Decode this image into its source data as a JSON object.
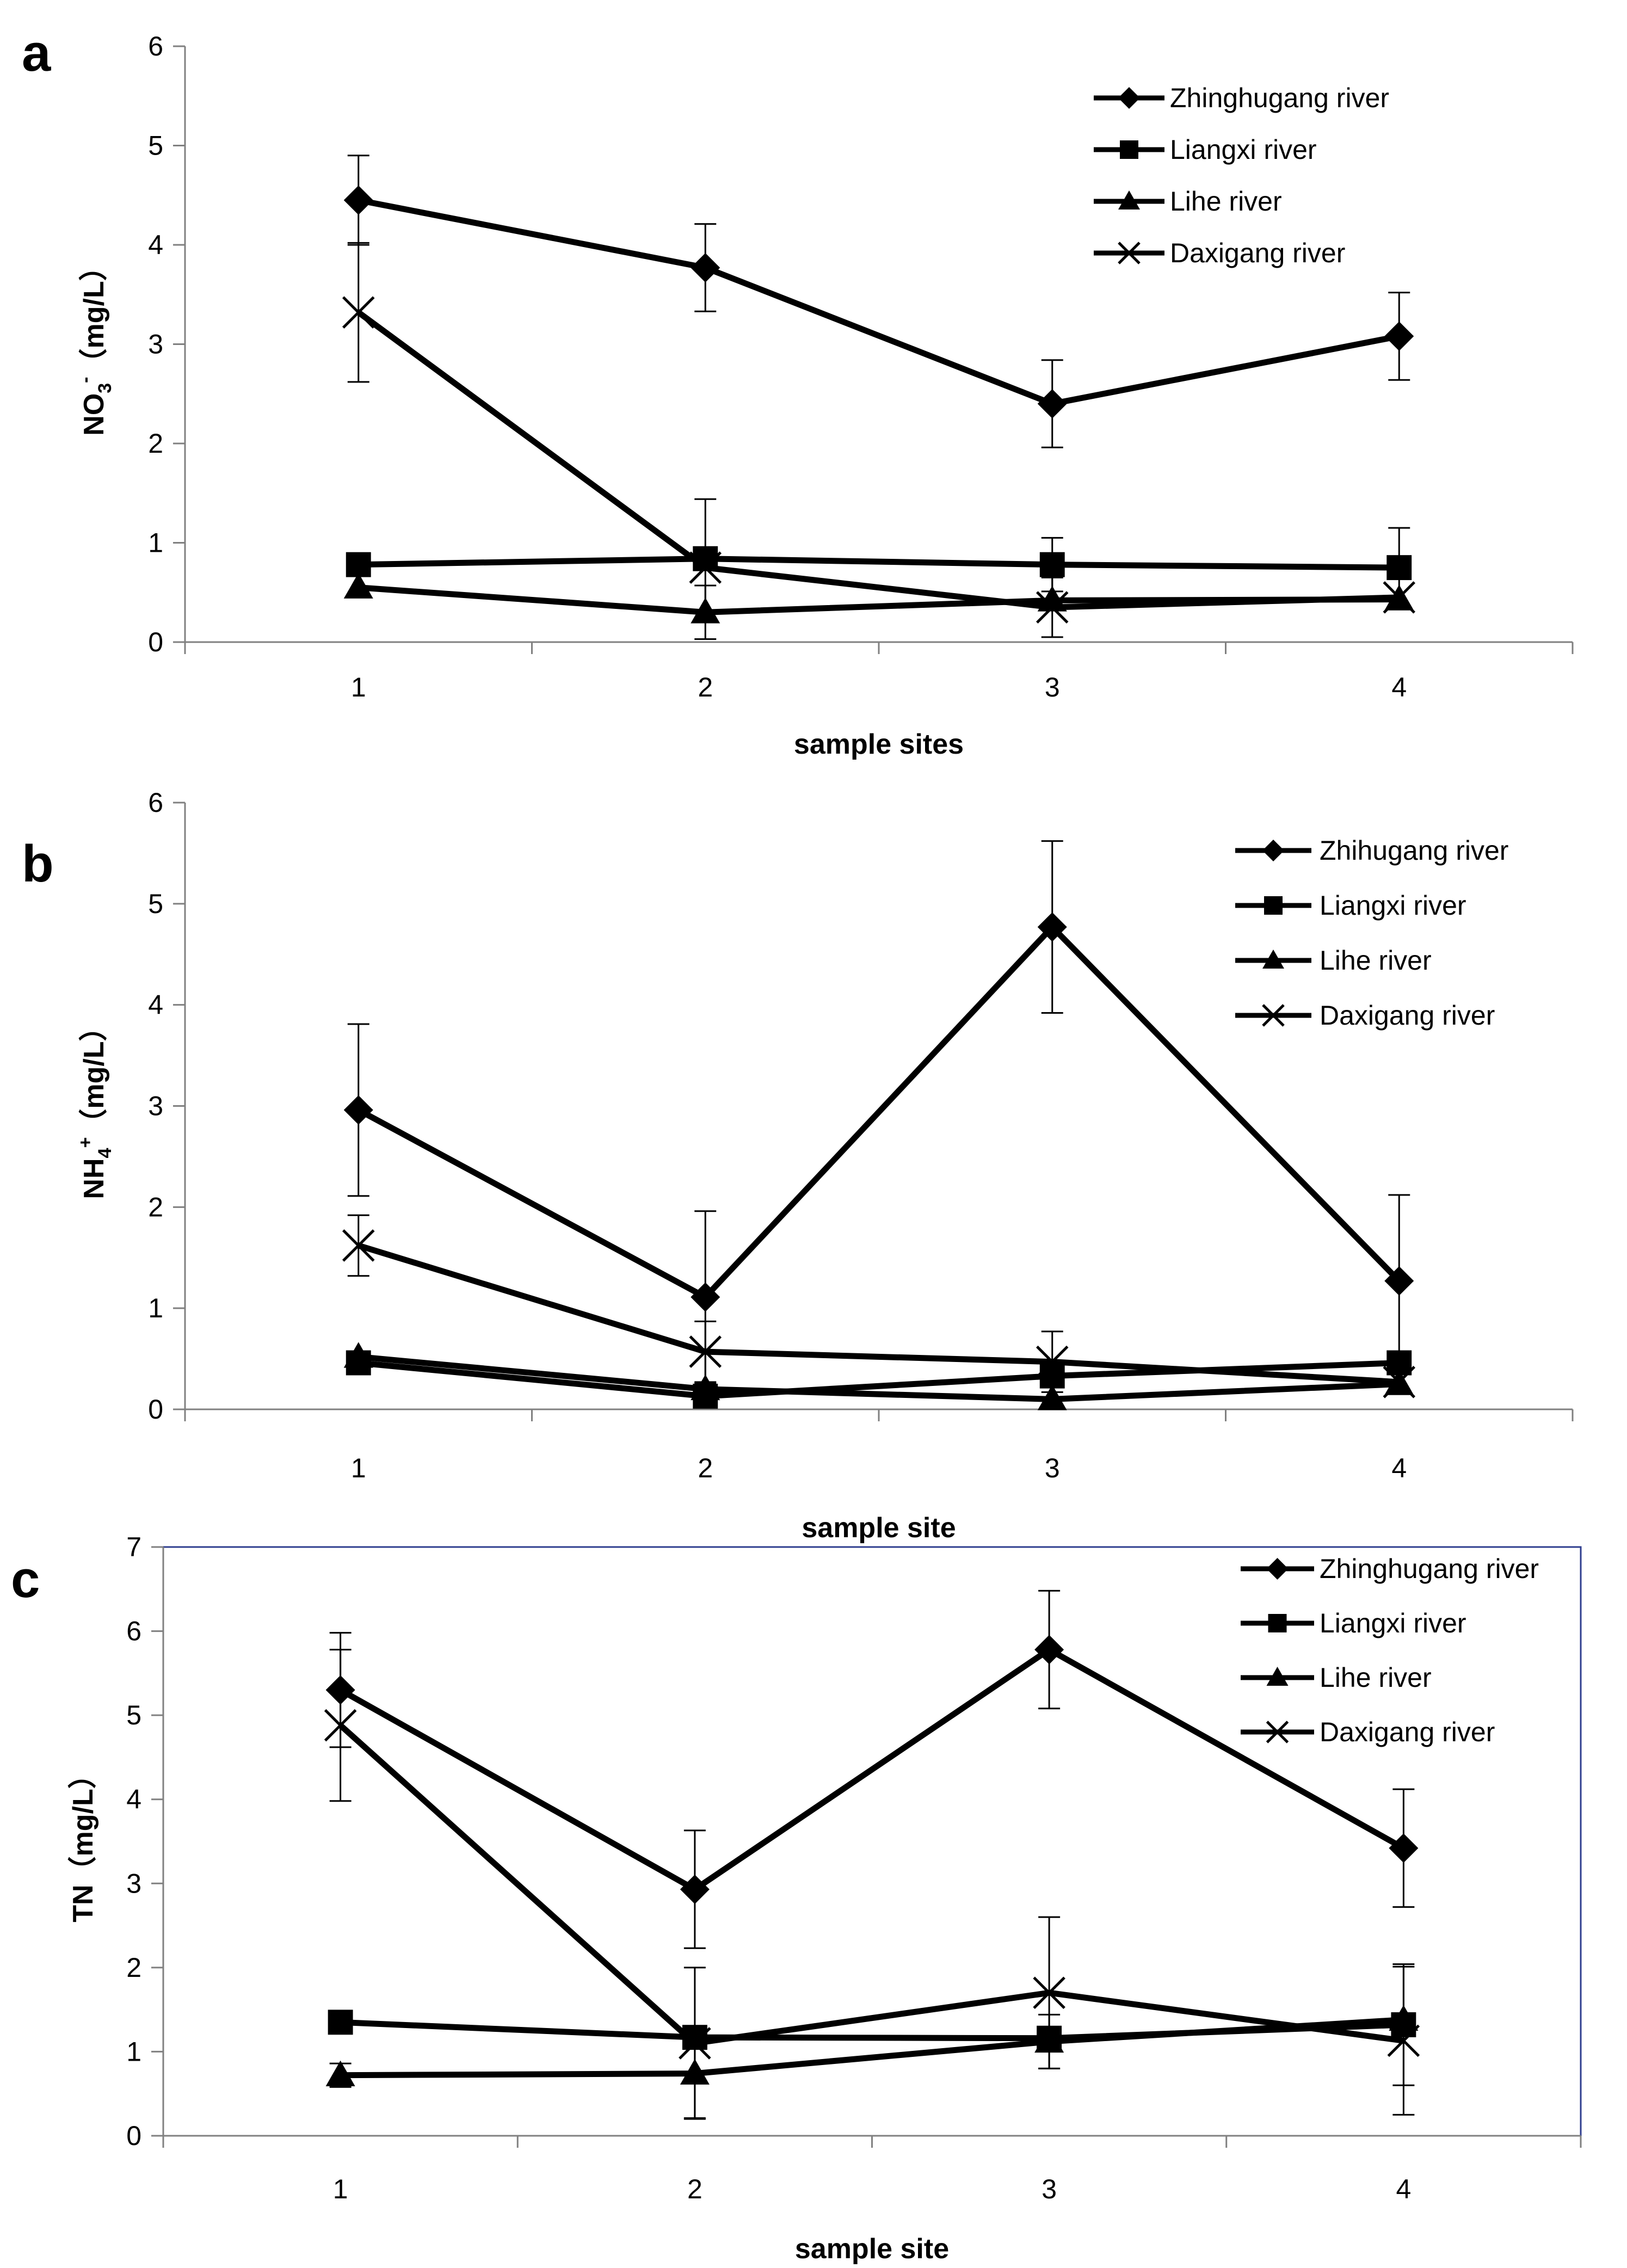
{
  "figure": {
    "series_names": [
      "Zhinghugang river",
      "Liangxi river",
      "Lihe river",
      "Daxigang river"
    ],
    "colors": {
      "line": "#000000",
      "frame": "#2f3e8f",
      "axis": "#808080"
    }
  },
  "chart_data": [
    {
      "panel": "a",
      "type": "line",
      "title": "",
      "xlabel": "sample sites",
      "ylabel": "NO3- (mg/L)",
      "ylabel_main": "NO",
      "ylabel_sub": "3",
      "ylabel_sup": "-",
      "ylabel_unit": "（mg/L）",
      "categories": [
        "1",
        "2",
        "3",
        "4"
      ],
      "ylim": [
        0,
        6
      ],
      "yticks": [
        "0",
        "1",
        "2",
        "3",
        "4",
        "5",
        "6"
      ],
      "legend_position": "top-right",
      "series": [
        {
          "name": "Zhinghugang river",
          "marker": "diamond",
          "values": [
            4.45,
            3.77,
            2.4,
            3.08
          ],
          "errors": [
            0.45,
            0.44,
            0.44,
            0.44
          ]
        },
        {
          "name": "Liangxi river",
          "marker": "square",
          "values": [
            0.78,
            0.84,
            0.78,
            0.75
          ],
          "errors": [
            0.0,
            0.6,
            0.27,
            0.4
          ]
        },
        {
          "name": "Lihe river",
          "marker": "triangle",
          "values": [
            0.55,
            0.3,
            0.42,
            0.43
          ],
          "errors": [
            0.0,
            0.27,
            0.0,
            0.0
          ]
        },
        {
          "name": "Daxigang river",
          "marker": "x",
          "values": [
            3.32,
            0.75,
            0.35,
            0.45
          ],
          "errors": [
            0.7,
            0.0,
            0.3,
            0.0
          ]
        }
      ]
    },
    {
      "panel": "b",
      "type": "line",
      "title": "",
      "xlabel": "sample site",
      "ylabel": "NH4+ (mg/L)",
      "ylabel_main": "NH",
      "ylabel_sub": "4",
      "ylabel_sup": "+",
      "ylabel_unit": "（mg/L）",
      "categories": [
        "1",
        "2",
        "3",
        "4"
      ],
      "ylim": [
        0,
        6
      ],
      "yticks": [
        "0",
        "1",
        "2",
        "3",
        "4",
        "5",
        "6"
      ],
      "legend_position": "top-right",
      "series": [
        {
          "name": "Zhihugang river",
          "marker": "diamond",
          "values": [
            2.96,
            1.11,
            4.77,
            1.27
          ],
          "errors": [
            0.85,
            0.85,
            0.85,
            0.85
          ]
        },
        {
          "name": "Liangxi river",
          "marker": "square",
          "values": [
            0.46,
            0.13,
            0.33,
            0.46
          ],
          "errors": [
            0.0,
            0.0,
            0.0,
            0.0
          ]
        },
        {
          "name": "Lihe river",
          "marker": "triangle",
          "values": [
            0.52,
            0.2,
            0.1,
            0.25
          ],
          "errors": [
            0.0,
            0.0,
            0.0,
            0.0
          ]
        },
        {
          "name": "Daxigang river",
          "marker": "x",
          "values": [
            1.62,
            0.57,
            0.47,
            0.27
          ],
          "errors": [
            0.3,
            0.3,
            0.3,
            0.0
          ]
        }
      ]
    },
    {
      "panel": "c",
      "type": "line",
      "title": "",
      "xlabel": "sample site",
      "ylabel": "TN (mg/L)",
      "ylabel_main": "TN",
      "ylabel_sub": "",
      "ylabel_sup": "",
      "ylabel_unit": "（mg/L）",
      "categories": [
        "1",
        "2",
        "3",
        "4"
      ],
      "ylim": [
        0,
        7
      ],
      "yticks": [
        "0",
        "1",
        "2",
        "3",
        "4",
        "5",
        "6",
        "7"
      ],
      "legend_position": "top-right",
      "series": [
        {
          "name": "Zhinghugang river",
          "marker": "diamond",
          "values": [
            5.3,
            2.93,
            5.78,
            3.42
          ],
          "errors": [
            0.68,
            0.7,
            0.7,
            0.7
          ]
        },
        {
          "name": "Liangxi river",
          "marker": "square",
          "values": [
            1.35,
            1.17,
            1.16,
            1.32
          ],
          "errors": [
            0.0,
            0.0,
            0.0,
            0.72
          ]
        },
        {
          "name": "Lihe river",
          "marker": "triangle",
          "values": [
            0.72,
            0.74,
            1.12,
            1.38
          ],
          "errors": [
            0.14,
            0.53,
            0.32,
            0.0
          ]
        },
        {
          "name": "Daxigang river",
          "marker": "x",
          "values": [
            4.88,
            1.1,
            1.7,
            1.13
          ],
          "errors": [
            0.9,
            0.9,
            0.9,
            0.88
          ]
        }
      ]
    }
  ]
}
